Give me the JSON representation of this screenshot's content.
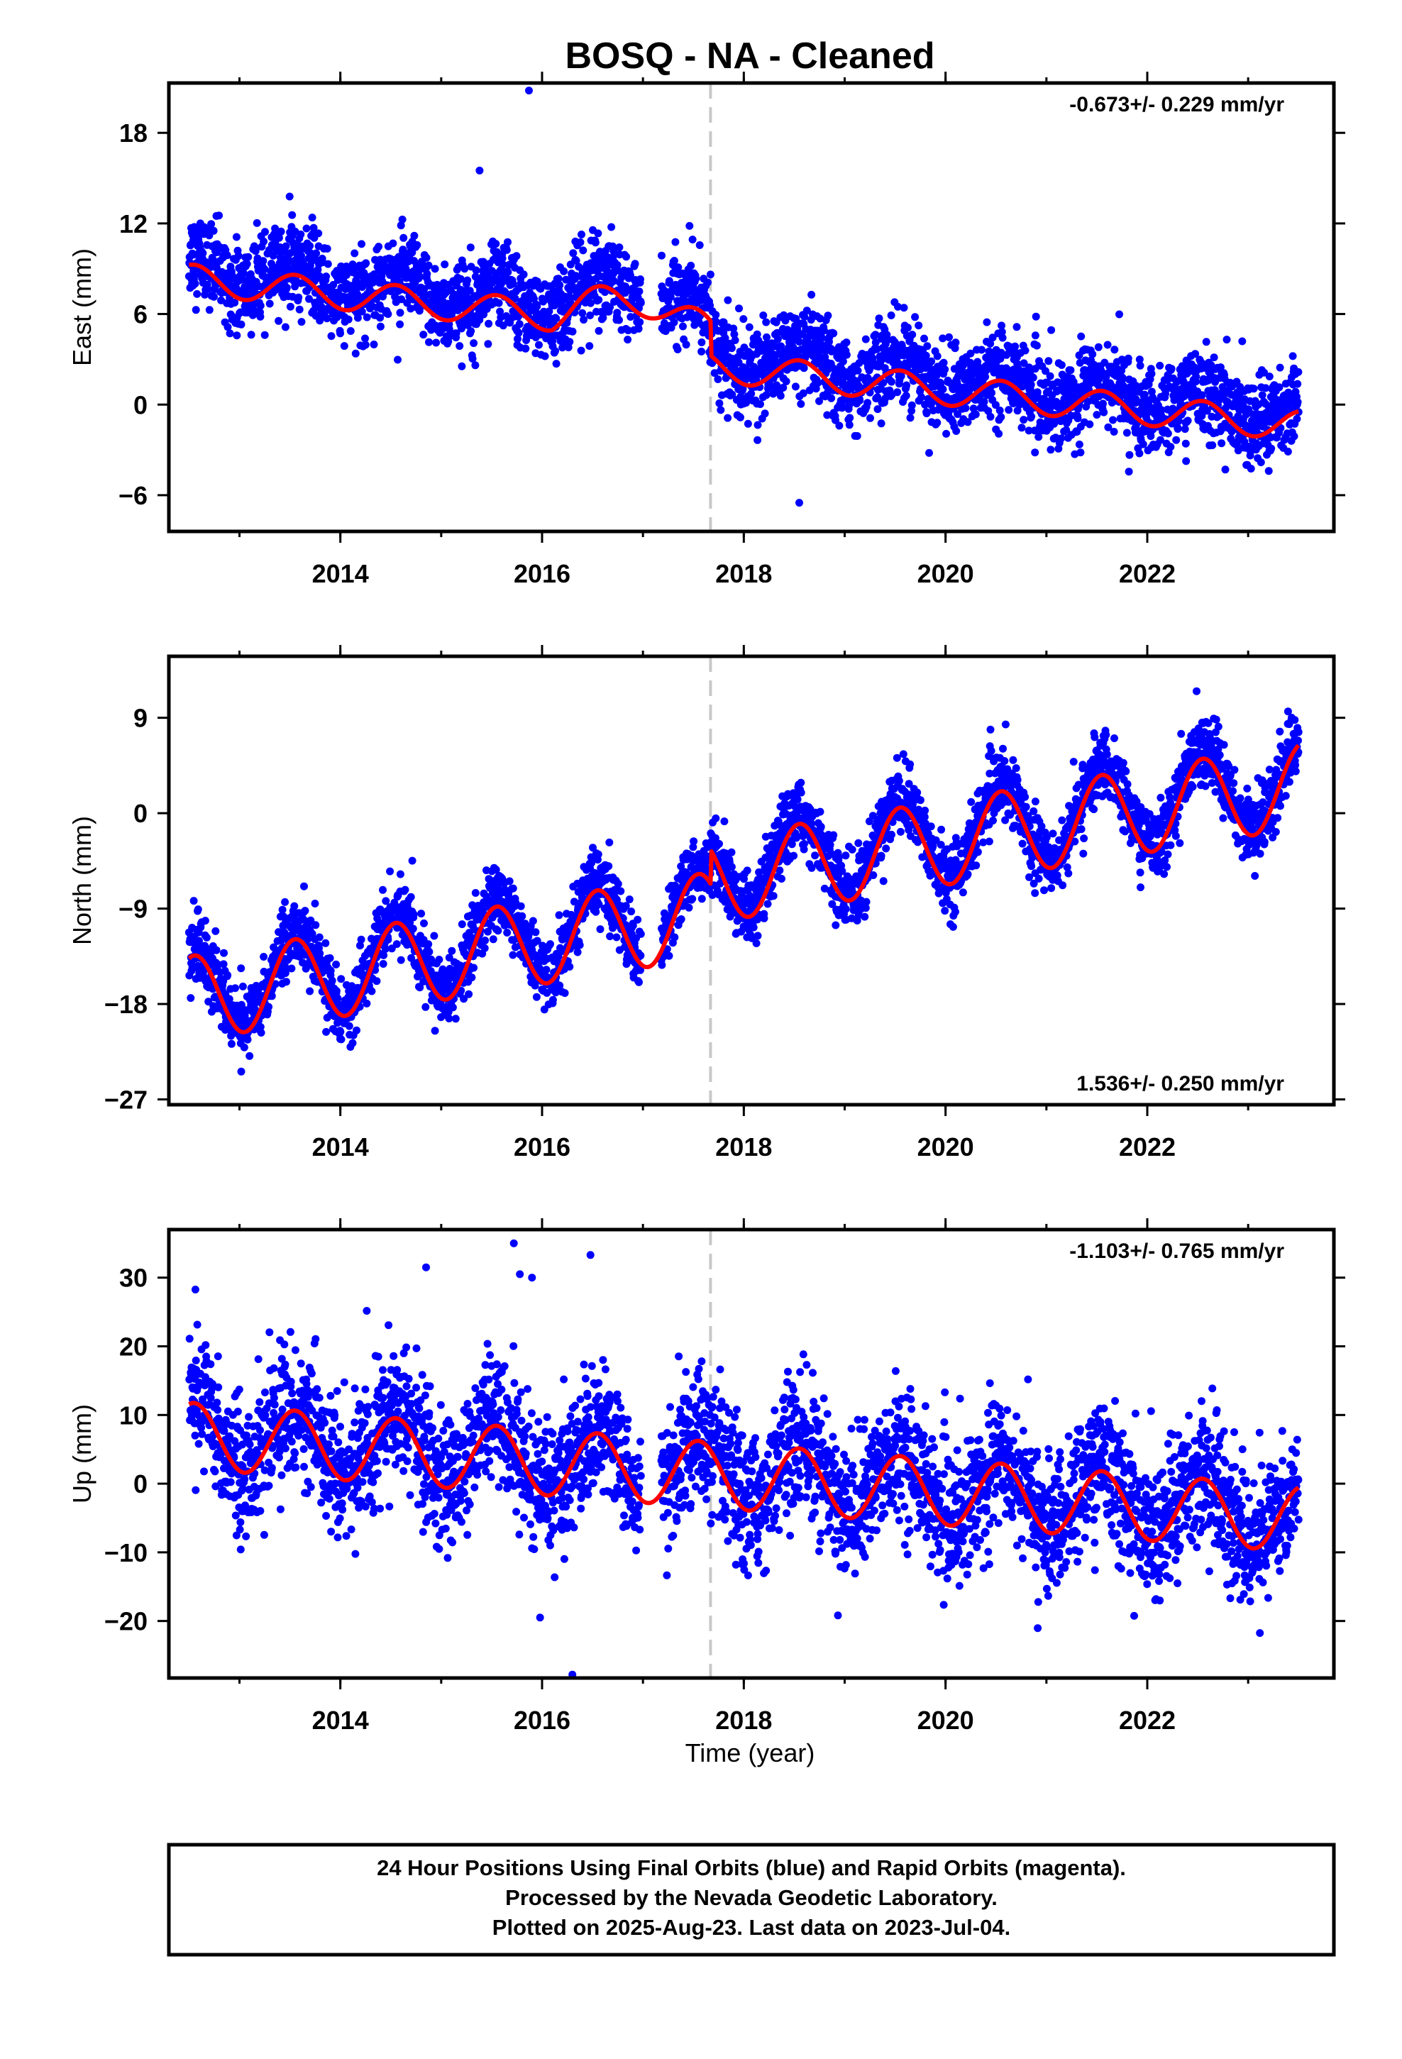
{
  "title": "BOSQ  - NA - Cleaned",
  "xlabel": "Time (year)",
  "footer": {
    "line1": "24 Hour Positions Using Final Orbits (blue) and Rapid Orbits (magenta).",
    "line2": "Processed by the Nevada Geodetic Laboratory.",
    "line3": "Plotted on 2025-Aug-23. Last data on 2023-Jul-04."
  },
  "colors": {
    "data": "#0000ff",
    "model": "#ff0000",
    "break": "#c8c8c8"
  },
  "chart_data": [
    {
      "type": "scatter",
      "component": "East",
      "ylabel": "East (mm)",
      "rate": "-0.673+/- 0.229 mm/yr",
      "xlim": [
        2012.3,
        2023.85
      ],
      "ylim": [
        -8.4,
        21.3
      ],
      "yticks": [
        -6,
        0,
        6,
        12,
        18
      ],
      "xticks": [
        2014,
        2016,
        2018,
        2020,
        2022
      ],
      "break_x": 2017.67,
      "model": {
        "a": 8.3,
        "rate": -0.673,
        "amp": 1.0,
        "pre_offset": 0.0,
        "post_offset": -2.3,
        "gap_bump": 1.6,
        "noise": 1.4,
        "outliers": [
          [
            2015.87,
            20.8
          ],
          [
            2015.38,
            15.5
          ],
          [
            2016.33,
            10.8
          ],
          [
            2018.55,
            -6.5
          ]
        ]
      }
    },
    {
      "type": "scatter",
      "component": "North",
      "ylabel": "North (mm)",
      "rate": "1.536+/- 0.250 mm/yr",
      "xlim": [
        2012.3,
        2023.85
      ],
      "ylim": [
        -27.5,
        14.8
      ],
      "yticks": [
        -27,
        -18,
        -9,
        0,
        9
      ],
      "xticks": [
        2014,
        2016,
        2018,
        2020,
        2022
      ],
      "break_x": 2017.67,
      "model": {
        "a": -17.5,
        "rate": 1.536,
        "amp": 4.0,
        "pre_offset": 0.0,
        "post_offset": 3.2,
        "gap_bump": 0.0,
        "noise": 1.6,
        "outliers": [
          [
            2017.38,
            -10.0
          ],
          [
            2018.2,
            -9.5
          ]
        ]
      }
    },
    {
      "type": "scatter",
      "component": "Up",
      "ylabel": "Up (mm)",
      "rate": "-1.103+/- 0.765 mm/yr",
      "xlim": [
        2012.3,
        2023.85
      ],
      "ylim": [
        -28.3,
        37.0
      ],
      "yticks": [
        -20,
        -10,
        0,
        10,
        20,
        30
      ],
      "xticks": [
        2014,
        2016,
        2018,
        2020,
        2022
      ],
      "break_x": 2017.67,
      "model": {
        "a": 7.0,
        "rate": -1.103,
        "amp": 4.8,
        "pre_offset": 0.0,
        "post_offset": 0.0,
        "gap_bump": 0.0,
        "noise": 4.8,
        "outliers": [
          [
            2014.85,
            31.5
          ],
          [
            2015.72,
            35.0
          ],
          [
            2016.48,
            33.3
          ],
          [
            2016.3,
            -27.8
          ],
          [
            2015.78,
            30.5
          ],
          [
            2015.9,
            30.0
          ],
          [
            2015.98,
            -19.5
          ]
        ]
      }
    }
  ]
}
